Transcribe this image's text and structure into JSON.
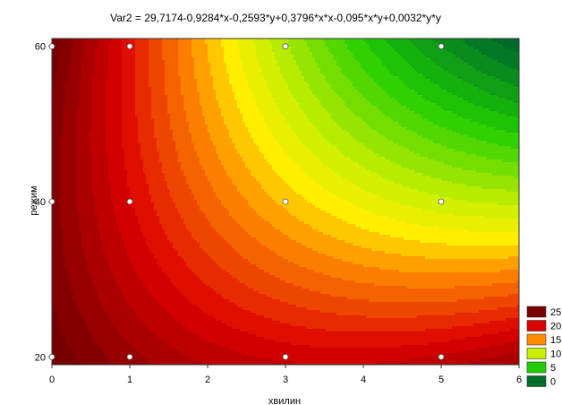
{
  "chart_data": {
    "type": "contour",
    "title": "Var2 = 29,7174-0,9284*x-0,2593*y+0,3796*x*x-0,095*x*y+0,0032*y*y",
    "xlabel": "хвилин",
    "ylabel": "режим",
    "xlim": [
      0,
      6
    ],
    "ylim": [
      19,
      61
    ],
    "x_ticks": [
      "0",
      "1",
      "2",
      "3",
      "4",
      "5",
      "6"
    ],
    "y_ticks": [
      "20",
      "40",
      "60"
    ],
    "y_tick_values": [
      20,
      40,
      60
    ],
    "surface": {
      "c0": 29.7174,
      "cx": -0.9284,
      "cy": -0.2593,
      "cxx": 0.3796,
      "cxy": -0.095,
      "cyy": 0.0032
    },
    "points": [
      {
        "x": 0,
        "y": 20
      },
      {
        "x": 1,
        "y": 20
      },
      {
        "x": 3,
        "y": 20
      },
      {
        "x": 5,
        "y": 20
      },
      {
        "x": 0,
        "y": 40
      },
      {
        "x": 1,
        "y": 40
      },
      {
        "x": 3,
        "y": 40
      },
      {
        "x": 5,
        "y": 40
      },
      {
        "x": 0,
        "y": 60
      },
      {
        "x": 1,
        "y": 60
      },
      {
        "x": 3,
        "y": 60
      },
      {
        "x": 5,
        "y": 60
      }
    ],
    "legend": [
      {
        "label": "25",
        "color": "#7a0000"
      },
      {
        "label": "20",
        "color": "#dd0000"
      },
      {
        "label": "15",
        "color": "#ff8c00"
      },
      {
        "label": "10",
        "color": "#c8f000"
      },
      {
        "label": "5",
        "color": "#20cc00"
      },
      {
        "label": "0",
        "color": "#006f2a"
      }
    ],
    "gradient_stops": [
      {
        "v": -2,
        "color": "#005a22"
      },
      {
        "v": 0,
        "color": "#006f2a"
      },
      {
        "v": 5,
        "color": "#20cc00"
      },
      {
        "v": 10,
        "color": "#c8f000"
      },
      {
        "v": 12.5,
        "color": "#ffee00"
      },
      {
        "v": 15,
        "color": "#ff8c00"
      },
      {
        "v": 20,
        "color": "#dd0000"
      },
      {
        "v": 25,
        "color": "#7a0000"
      },
      {
        "v": 30,
        "color": "#5a0000"
      }
    ],
    "band_step": 1
  }
}
